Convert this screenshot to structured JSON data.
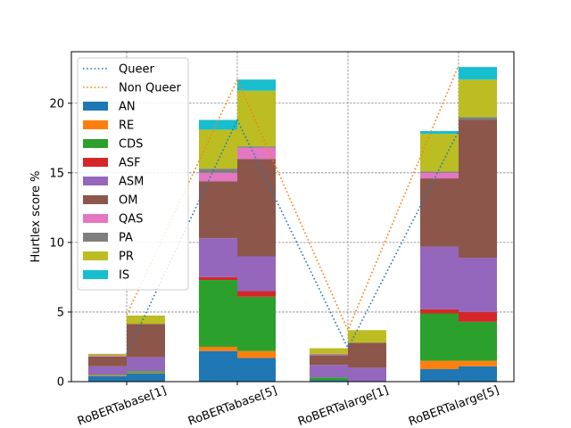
{
  "chart_data": {
    "type": "bar",
    "ylabel": "Hurtlex score %",
    "xlabel": "",
    "ylim": [
      0,
      23.7
    ],
    "yticks": [
      0,
      5,
      10,
      15,
      20
    ],
    "grid": true,
    "legend_position": "top-left",
    "categories": [
      "RoBERTabase[1]",
      "RoBERTabase[5]",
      "RoBERTalarge[1]",
      "RoBERTalarge[5]"
    ],
    "groups": [
      "Queer",
      "Non Queer"
    ],
    "stack_series": [
      {
        "name": "AN",
        "color": "#1f77b4",
        "queer": [
          0.4,
          2.2,
          0.1,
          0.9
        ],
        "non_queer": [
          0.6,
          1.7,
          0.0,
          1.1
        ]
      },
      {
        "name": "RE",
        "color": "#ff7f0e",
        "queer": [
          0.05,
          0.3,
          0.0,
          0.6
        ],
        "non_queer": [
          0.05,
          0.5,
          0.0,
          0.4
        ]
      },
      {
        "name": "CDS",
        "color": "#2ca02c",
        "queer": [
          0.05,
          4.8,
          0.2,
          3.4
        ],
        "non_queer": [
          0.1,
          3.9,
          0.0,
          2.8
        ]
      },
      {
        "name": "ASF",
        "color": "#d62728",
        "queer": [
          0.0,
          0.2,
          0.0,
          0.3
        ],
        "non_queer": [
          0.0,
          0.4,
          0.0,
          0.7
        ]
      },
      {
        "name": "ASM",
        "color": "#9467bd",
        "queer": [
          0.6,
          2.8,
          0.9,
          4.5
        ],
        "non_queer": [
          1.0,
          2.5,
          1.0,
          3.9
        ]
      },
      {
        "name": "OM",
        "color": "#8c564b",
        "queer": [
          0.7,
          4.1,
          0.7,
          4.9
        ],
        "non_queer": [
          2.4,
          7.0,
          1.8,
          9.9
        ]
      },
      {
        "name": "QAS",
        "color": "#e377c2",
        "queer": [
          0.05,
          0.6,
          0.05,
          0.4
        ],
        "non_queer": [
          0.0,
          0.8,
          0.0,
          0.0
        ]
      },
      {
        "name": "PA",
        "color": "#7f7f7f",
        "queer": [
          0.05,
          0.3,
          0.05,
          0.1
        ],
        "non_queer": [
          0.0,
          0.1,
          0.0,
          0.2
        ]
      },
      {
        "name": "PR",
        "color": "#bcbd22",
        "queer": [
          0.1,
          2.8,
          0.4,
          2.7
        ],
        "non_queer": [
          0.6,
          4.0,
          0.9,
          2.7
        ]
      },
      {
        "name": "IS",
        "color": "#17becf",
        "queer": [
          0.0,
          0.7,
          0.0,
          0.2
        ],
        "non_queer": [
          0.0,
          0.8,
          0.0,
          0.9
        ]
      }
    ],
    "line_series": [
      {
        "name": "Queer",
        "color": "#1f77b4",
        "style": "dotted",
        "values": [
          2.0,
          18.8,
          2.4,
          18.0
        ]
      },
      {
        "name": "Non Queer",
        "color": "#ff7f0e",
        "style": "dotted",
        "values": [
          4.8,
          21.7,
          3.7,
          22.7
        ]
      }
    ]
  }
}
